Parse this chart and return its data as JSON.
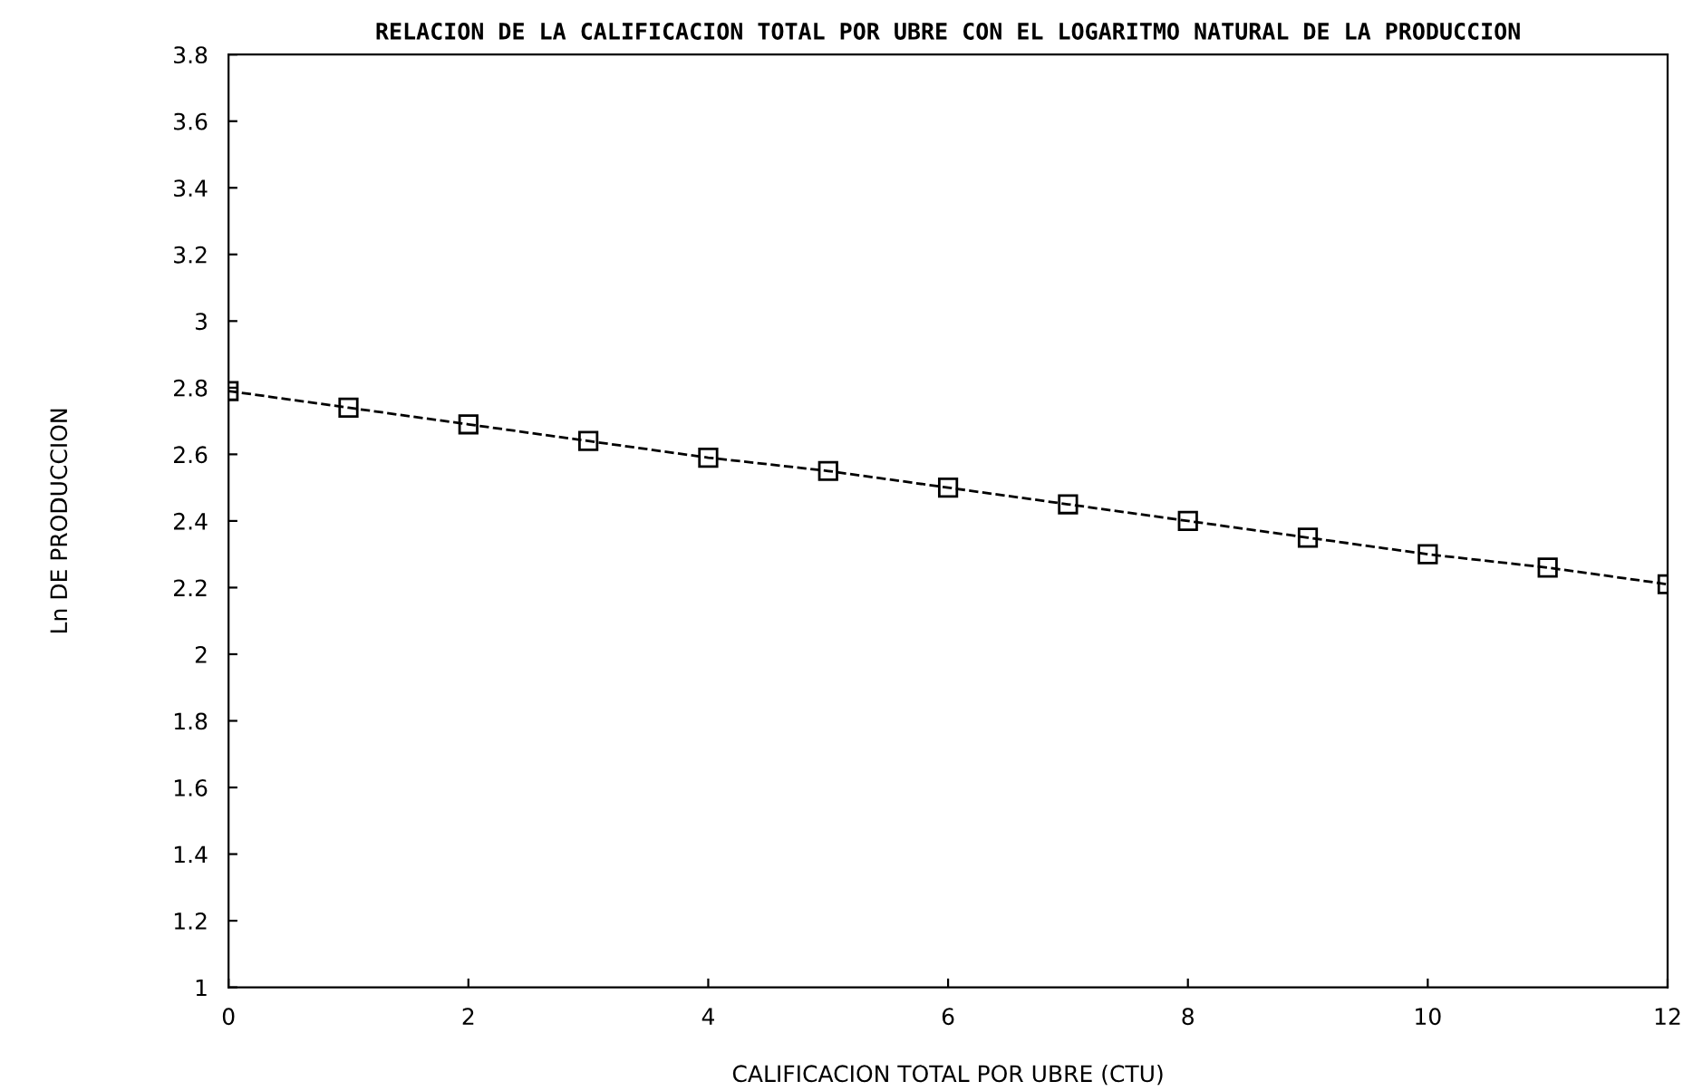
{
  "chart_data": {
    "type": "line",
    "title": "RELACION DE LA CALIFICACION TOTAL POR UBRE CON EL LOGARITMO NATURAL DE LA PRODUCCION",
    "xlabel": "CALIFICACION TOTAL POR UBRE (CTU)",
    "ylabel": "Ln DE PRODUCCION",
    "x": [
      0,
      1,
      2,
      3,
      4,
      5,
      6,
      7,
      8,
      9,
      10,
      11,
      12
    ],
    "series": [
      {
        "color": "#000000",
        "values": [
          2.79,
          2.74,
          2.69,
          2.64,
          2.59,
          2.55,
          2.5,
          2.45,
          2.4,
          2.35,
          2.3,
          2.26,
          2.21
        ]
      }
    ],
    "xlim": [
      0,
      12
    ],
    "xticks": [
      0,
      2,
      4,
      6,
      8,
      10,
      12
    ],
    "ylim": [
      1,
      3.8
    ],
    "yticks": [
      1,
      1.2,
      1.4,
      1.6,
      1.8,
      2,
      2.2,
      2.4,
      2.6,
      2.8,
      3,
      3.2,
      3.4,
      3.6,
      3.8
    ],
    "marker": "square",
    "line_style": "dashed",
    "grid": false,
    "legend": false
  }
}
